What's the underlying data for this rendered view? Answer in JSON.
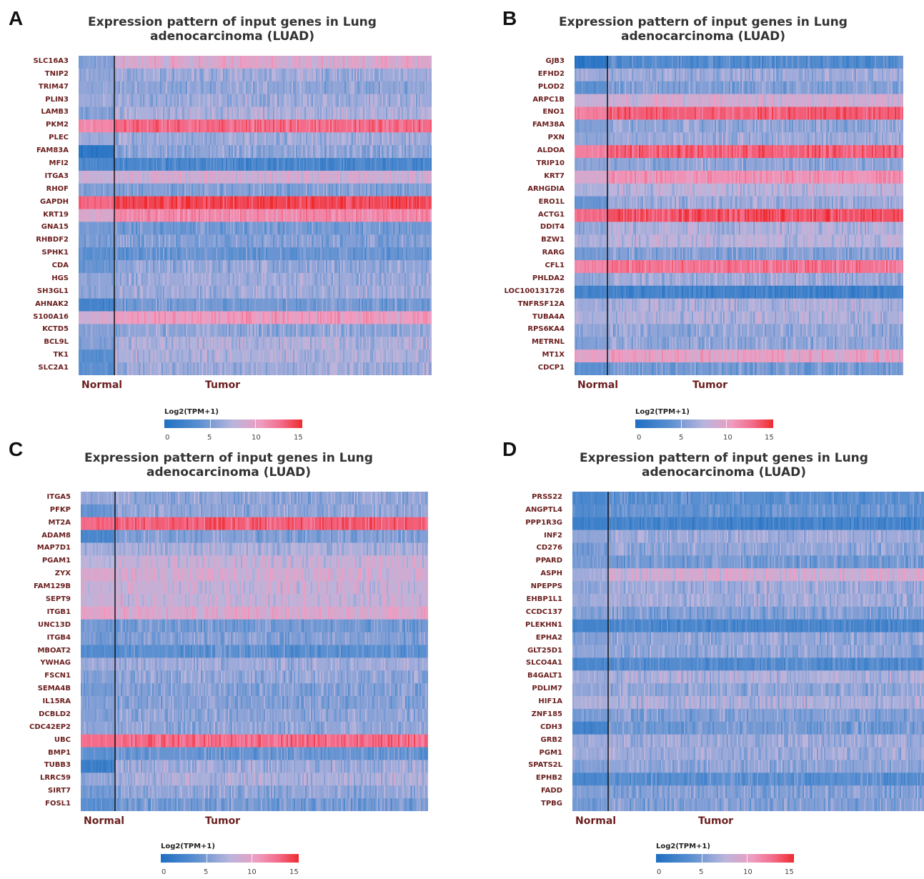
{
  "panels": [
    {
      "letter": "A",
      "title": "Expression pattern of input genes in Lung\nadenocarcinoma (LUAD)",
      "normal_label": "Normal",
      "tumor_label": "Tumor",
      "legend_title": "Log2(TPM+1)",
      "legend_ticks": [
        "0",
        "5",
        "10",
        "15"
      ]
    },
    {
      "letter": "B",
      "title": "Expression pattern of input genes in Lung\nadenocarcinoma (LUAD)",
      "normal_label": "Normal",
      "tumor_label": "Tumor",
      "legend_title": "Log2(TPM+1)",
      "legend_ticks": [
        "0",
        "5",
        "10",
        "15"
      ]
    },
    {
      "letter": "C",
      "title": "Expression pattern of input genes in Lung\nadenocarcinoma (LUAD)",
      "normal_label": "Normal",
      "tumor_label": "Tumor",
      "legend_title": "Log2(TPM+1)",
      "legend_ticks": [
        "0",
        "5",
        "10",
        "15"
      ]
    },
    {
      "letter": "D",
      "title": "Expression pattern of input genes in Lung\nadenocarcinoma (LUAD)",
      "normal_label": "Normal",
      "tumor_label": "Tumor",
      "legend_title": "Log2(TPM+1)",
      "legend_ticks": [
        "0",
        "5",
        "10",
        "15"
      ]
    }
  ],
  "colors": {
    "low": "#1f6fc2",
    "mid": "#b9b5dc",
    "high": "#ee2b2f",
    "gene_label": "#6b1e1e"
  },
  "chart_data": [
    {
      "type": "heatmap",
      "title": "Expression pattern of input genes in Lung adenocarcinoma (LUAD)",
      "groups": [
        "Normal",
        "Tumor"
      ],
      "color_scale": "Log2(TPM+1)",
      "color_range": [
        0,
        15
      ],
      "genes": [
        "SLC16A3",
        "TNIP2",
        "TRIM47",
        "PLIN3",
        "LAMB3",
        "PKM2",
        "PLEC",
        "FAM83A",
        "MFI2",
        "ITGA3",
        "RHOF",
        "GAPDH",
        "KRT19",
        "GNA15",
        "RHBDF2",
        "SPHK1",
        "CDA",
        "HGS",
        "SH3GL1",
        "AHNAK2",
        "S100A16",
        "KCTD5",
        "BCL9L",
        "TK1",
        "SLC2A1"
      ],
      "normal_level": [
        5.5,
        6,
        6,
        6.5,
        5.5,
        11,
        6.5,
        1,
        3,
        8,
        5.5,
        12.5,
        9,
        5,
        5,
        4,
        4.5,
        6,
        6,
        2.5,
        8.5,
        5.5,
        5.5,
        4,
        4
      ],
      "tumor_level": [
        9,
        6.5,
        6,
        6.5,
        7,
        12.5,
        6.5,
        6,
        3,
        8.5,
        5.5,
        14,
        11,
        5,
        5.5,
        4.5,
        6,
        6.5,
        6.5,
        5,
        10,
        6,
        7,
        7,
        6.5
      ]
    },
    {
      "type": "heatmap",
      "title": "Expression pattern of input genes in Lung adenocarcinoma (LUAD)",
      "groups": [
        "Normal",
        "Tumor"
      ],
      "color_scale": "Log2(TPM+1)",
      "color_range": [
        0,
        15
      ],
      "genes": [
        "GJB3",
        "EFHD2",
        "PLOD2",
        "ARPC1B",
        "ENO1",
        "FAM38A",
        "PXN",
        "ALDOA",
        "TRIP10",
        "KRT7",
        "ARHGDIA",
        "ERO1L",
        "ACTG1",
        "DDIT4",
        "BZW1",
        "RARG",
        "CFL1",
        "PHLDA2",
        "LOC100131726",
        "TNFRSF12A",
        "TUBA4A",
        "RPS6KA4",
        "METRNL",
        "MT1X",
        "CDCP1"
      ],
      "normal_level": [
        1,
        6.5,
        4,
        8,
        11.5,
        5.5,
        6,
        11.5,
        6,
        9,
        7,
        4.5,
        12.5,
        6,
        7,
        5,
        11,
        6,
        2.5,
        6.5,
        7,
        6,
        5.5,
        9.5,
        4
      ],
      "tumor_level": [
        3.5,
        6.5,
        5.5,
        8.5,
        13,
        6,
        6.5,
        13,
        6,
        10.5,
        7.5,
        6.5,
        13.5,
        7,
        7.5,
        5.5,
        12,
        6.5,
        2.5,
        7,
        7,
        6,
        6,
        9.5,
        5
      ]
    },
    {
      "type": "heatmap",
      "title": "Expression pattern of input genes in Lung adenocarcinoma (LUAD)",
      "groups": [
        "Normal",
        "Tumor"
      ],
      "color_scale": "Log2(TPM+1)",
      "color_range": [
        0,
        15
      ],
      "genes": [
        "ITGA5",
        "PFKP",
        "MT2A",
        "ADAM8",
        "MAP7D1",
        "PGAM1",
        "ZYX",
        "FAM129B",
        "SEPT9",
        "ITGB1",
        "UNC13D",
        "ITGB4",
        "MBOAT2",
        "YWHAG",
        "FSCN1",
        "SEMA4B",
        "IL15RA",
        "DCBLD2",
        "CDC42EP2",
        "UBC",
        "BMP1",
        "TUBB3",
        "LRRC59",
        "SIRT7",
        "FOSL1"
      ],
      "normal_level": [
        6,
        4.5,
        12.5,
        3,
        6.5,
        7.5,
        9,
        8,
        8,
        9.5,
        5,
        5,
        3.5,
        6.5,
        5.5,
        5,
        5.5,
        5.5,
        6,
        12.5,
        4,
        2,
        6,
        5,
        4
      ],
      "tumor_level": [
        6,
        6,
        13,
        5.5,
        7,
        8,
        8.5,
        8,
        8,
        9,
        5,
        5.5,
        4,
        6.5,
        6,
        5.5,
        5.5,
        6,
        6,
        12.5,
        4.5,
        6.5,
        7,
        6,
        5
      ]
    },
    {
      "type": "heatmap",
      "title": "Expression pattern of input genes in Lung adenocarcinoma (LUAD)",
      "groups": [
        "Normal",
        "Tumor"
      ],
      "color_scale": "Log2(TPM+1)",
      "color_range": [
        0,
        15
      ],
      "genes": [
        "PRSS22",
        "ANGPTL4",
        "PPP1R3G",
        "INF2",
        "CD276",
        "PPARD",
        "ASPH",
        "NPEPPS",
        "EHBP1L1",
        "CCDC137",
        "PLEKHN1",
        "EPHA2",
        "GLT25D1",
        "SLCO4A1",
        "B4GALT1",
        "PDLIM7",
        "HIF1A",
        "ZNF185",
        "CDH3",
        "GRB2",
        "PGM1",
        "SPATS2L",
        "EPHB2",
        "FADD",
        "TPBG"
      ],
      "normal_level": [
        3,
        3.5,
        2,
        6,
        5,
        5,
        6.5,
        6,
        6.5,
        5.5,
        2.5,
        5.5,
        6,
        3,
        6.5,
        6,
        7,
        5,
        2.5,
        6.5,
        6.5,
        5.5,
        3,
        5.5,
        5
      ],
      "tumor_level": [
        4,
        4.5,
        2.5,
        6.5,
        6,
        5,
        8.5,
        6.5,
        6.5,
        5.5,
        3,
        6,
        6,
        3.5,
        7,
        6,
        7,
        5.5,
        5,
        6.5,
        6.5,
        6,
        4,
        5.5,
        5.5
      ]
    }
  ]
}
